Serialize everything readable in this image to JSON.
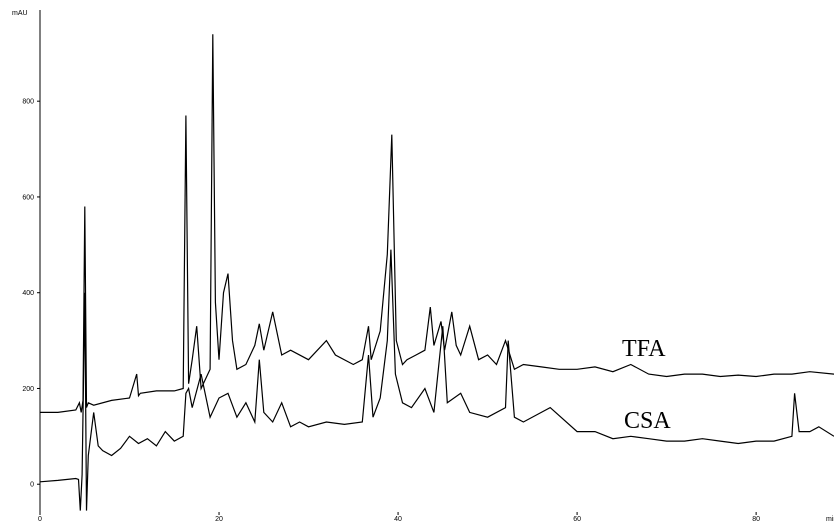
{
  "chart_data": {
    "type": "line",
    "y_label": "mAU",
    "x_label": "min",
    "xlim": [
      0,
      88.7
    ],
    "ylim": [
      -58,
      980
    ],
    "xticks": [
      0,
      20,
      40,
      60,
      80
    ],
    "yticks": [
      0,
      200,
      400,
      600,
      800
    ],
    "series": [
      {
        "name": "TFA",
        "color": "#000000",
        "x": [
          0,
          2,
          4,
          4.4,
          4.6,
          4.8,
          5.0,
          5.2,
          5.4,
          6,
          8,
          10,
          10.8,
          11,
          11.2,
          13,
          15,
          16,
          16.3,
          16.6,
          17,
          17.5,
          18,
          19,
          19.3,
          19.6,
          20,
          20.5,
          21,
          21.5,
          22,
          23,
          24,
          24.5,
          25,
          26,
          27,
          28,
          30,
          32,
          33,
          35,
          36,
          36.7,
          37,
          38,
          38.8,
          39.3,
          39.8,
          40.5,
          41,
          42,
          43,
          43.6,
          44,
          44.8,
          45.2,
          46,
          46.5,
          47,
          48,
          49,
          50,
          51,
          52,
          53,
          54,
          56,
          58,
          60,
          62,
          64,
          66,
          68,
          70,
          72,
          74,
          76,
          78,
          80,
          82,
          84,
          86,
          88.7
        ],
        "values": [
          150,
          150,
          155,
          170,
          150,
          175,
          580,
          160,
          170,
          165,
          175,
          180,
          230,
          185,
          190,
          195,
          195,
          200,
          770,
          210,
          260,
          330,
          200,
          240,
          940,
          380,
          260,
          400,
          440,
          300,
          240,
          250,
          290,
          335,
          280,
          360,
          270,
          280,
          260,
          300,
          270,
          250,
          260,
          330,
          260,
          320,
          480,
          730,
          300,
          250,
          260,
          270,
          280,
          370,
          290,
          340,
          280,
          360,
          290,
          270,
          330,
          260,
          270,
          250,
          300,
          240,
          250,
          245,
          240,
          240,
          245,
          235,
          250,
          230,
          225,
          230,
          230,
          225,
          228,
          225,
          230,
          230,
          235,
          230
        ]
      },
      {
        "name": "CSA",
        "color": "#000000",
        "x": [
          0,
          2,
          4,
          4.3,
          4.5,
          4.7,
          5.0,
          5.2,
          5.4,
          6,
          6.5,
          7,
          8,
          9,
          10,
          11,
          12,
          13,
          14,
          15,
          16,
          16.3,
          16.6,
          17,
          18,
          19,
          20,
          21,
          22,
          23,
          24,
          24.5,
          25,
          26,
          27,
          28,
          29,
          30,
          32,
          34,
          36,
          36.7,
          37.2,
          38,
          38.8,
          39.2,
          39.7,
          40.5,
          41.5,
          43,
          44,
          45,
          45.5,
          47,
          48,
          50,
          52,
          52.3,
          53,
          54,
          56,
          57,
          60,
          62,
          64,
          66,
          68,
          70,
          72,
          74,
          76,
          78,
          80,
          82,
          84,
          84.3,
          84.8,
          86,
          87,
          88.7
        ],
        "values": [
          5,
          8,
          12,
          10,
          -55,
          20,
          400,
          -55,
          60,
          150,
          80,
          70,
          60,
          75,
          100,
          85,
          95,
          80,
          110,
          90,
          100,
          190,
          200,
          160,
          230,
          140,
          180,
          190,
          140,
          170,
          130,
          260,
          150,
          130,
          170,
          120,
          130,
          120,
          130,
          125,
          130,
          270,
          140,
          180,
          300,
          490,
          230,
          170,
          160,
          200,
          150,
          330,
          170,
          190,
          150,
          140,
          160,
          300,
          140,
          130,
          150,
          160,
          110,
          110,
          95,
          100,
          95,
          90,
          90,
          95,
          90,
          85,
          90,
          90,
          100,
          190,
          110,
          110,
          120,
          100
        ]
      }
    ]
  }
}
